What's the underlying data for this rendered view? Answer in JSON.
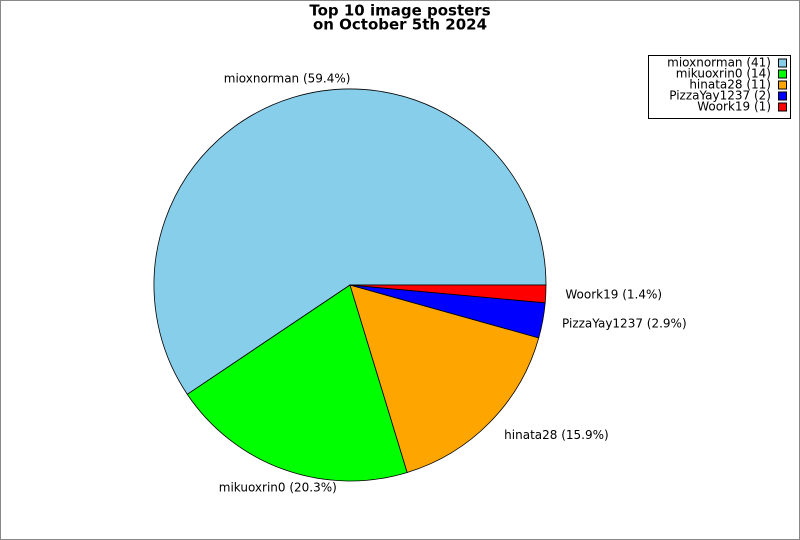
{
  "chart_data": {
    "type": "pie",
    "title": [
      "Top 10 image posters",
      "on October 5th 2024"
    ],
    "categories": [
      "mioxnorman",
      "mikuoxrin0",
      "hinata28",
      "PizzaYay1237",
      "Woork19"
    ],
    "values": [
      41,
      14,
      11,
      2,
      1
    ],
    "slice_labels": [
      "mioxnorman (59.4%)",
      "mikuoxrin0 (20.3%)",
      "hinata28 (15.9%)",
      "PizzaYay1237 (2.9%)",
      "Woork19 (1.4%)"
    ],
    "legend_labels": [
      "mioxnorman (41)",
      "mikuoxrin0 (14)",
      "hinata28 (11)",
      "PizzaYay1237 (2)",
      "Woork19 (1)"
    ],
    "colors": [
      "#87ceeb",
      "#00ff00",
      "#ffa500",
      "#0000ff",
      "#ff0000"
    ],
    "legend": "upper right"
  }
}
